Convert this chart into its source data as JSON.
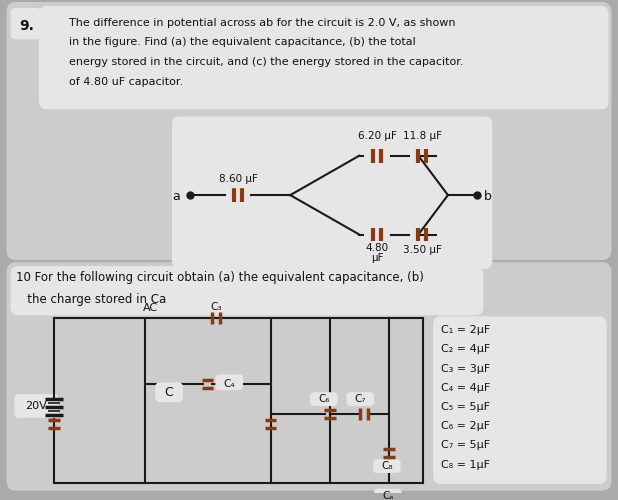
{
  "bg_color": "#aaaaaa",
  "panel_color": "#cccccc",
  "white_box_color": "#e6e6e6",
  "problem9_text_lines": [
    "The difference in potential across ab for the circuit is 2.0 V, as shown",
    "in the figure. Find (a) the equivalent capacitance, (b) the total",
    "energy stored in the circuit, and (c) the energy stored in the capacitor.",
    "of 4.80 uF capacitor."
  ],
  "problem9_number": "9.",
  "problem10_text_lines": [
    "10 For the following circuit obtain (a) the equivalent capacitance, (b)",
    "   the charge stored in Ca"
  ],
  "cap_labels_q9": {
    "c1": "8.60 μF",
    "c2_line1": "4.80",
    "c2_line2": "μF",
    "c3": "6.20 μF",
    "c4": "11.8 μF",
    "c5": "3.50 μF"
  },
  "cap_labels_q10": [
    "C₁ = 2μF",
    "C₂ = 4μF",
    "C₃ = 3μF",
    "C₄ = 4μF",
    "C₅ = 5μF",
    "C₆ = 2μF",
    "C₇ = 5μF",
    "C₈ = 1μF"
  ],
  "line_color": "#1a1a1a",
  "cap_color": "#8B3A0F",
  "text_color": "#111111"
}
